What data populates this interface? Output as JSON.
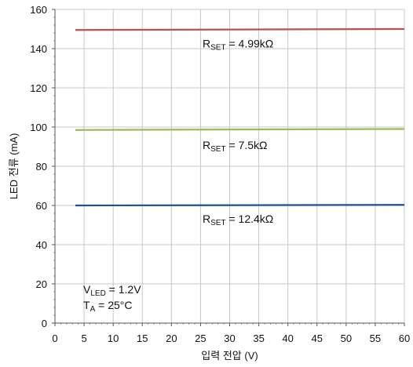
{
  "chart_data": {
    "type": "line",
    "xlabel": "입력 전압 (V)",
    "ylabel": "LED 전류 (mA)",
    "xlim": [
      0,
      60
    ],
    "ylim": [
      0,
      160
    ],
    "x_ticks": [
      "0",
      "5",
      "10",
      "15",
      "20",
      "25",
      "30",
      "35",
      "40",
      "45",
      "50",
      "55",
      "60"
    ],
    "y_ticks": [
      "0",
      "20",
      "40",
      "60",
      "80",
      "100",
      "120",
      "140",
      "160"
    ],
    "grid": true,
    "series": [
      {
        "name": "RSET = 4.99kΩ",
        "label_main": "R",
        "label_sub": "SET",
        "label_rest": " = 4.99kΩ",
        "color": "#c0504d",
        "x": [
          3.5,
          60
        ],
        "y": [
          149.5,
          150
        ]
      },
      {
        "name": "RSET = 7.5kΩ",
        "label_main": "R",
        "label_sub": "SET",
        "label_rest": " = 7.5kΩ",
        "color": "#9bbb59",
        "x": [
          3.5,
          60
        ],
        "y": [
          98.5,
          99
        ]
      },
      {
        "name": "RSET = 12.4kΩ",
        "label_main": "R",
        "label_sub": "SET",
        "label_rest": " = 12.4kΩ",
        "color": "#1f4e9a",
        "x": [
          3.5,
          60
        ],
        "y": [
          60,
          60.3
        ]
      }
    ],
    "conditions": [
      {
        "main": "V",
        "sub": "LED",
        "rest": " = 1.2V"
      },
      {
        "main": "T",
        "sub": "A",
        "rest": " = 25°C"
      }
    ]
  }
}
